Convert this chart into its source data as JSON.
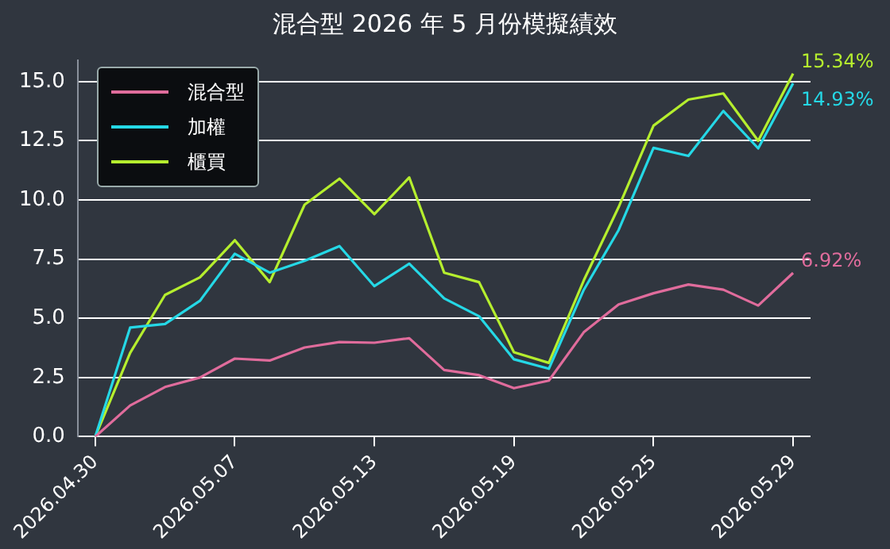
{
  "chart_data": {
    "type": "line",
    "title": "混合型 2026 年 5 月份模擬績效",
    "categories": [
      "2026.04.30",
      null,
      null,
      null,
      "2026.05.07",
      null,
      null,
      null,
      "2026.05.13",
      null,
      null,
      null,
      "2026.05.19",
      null,
      null,
      null,
      "2026.05.25",
      null,
      null,
      null,
      "2026.05.29"
    ],
    "series": [
      {
        "name": "混合型",
        "color": "#e06c9c",
        "values": [
          0,
          1.32,
          2.1,
          2.5,
          3.3,
          3.22,
          3.77,
          4.0,
          3.97,
          4.16,
          2.82,
          2.6,
          2.05,
          2.37,
          4.41,
          5.59,
          6.06,
          6.43,
          6.21,
          5.54,
          6.92
        ],
        "value_labels": [
          null,
          null,
          null,
          null,
          null,
          null,
          null,
          null,
          null,
          null,
          null,
          null,
          null,
          null,
          null,
          null,
          null,
          null,
          null,
          null,
          "6.92%"
        ]
      },
      {
        "name": "加權",
        "color": "#25d8e6",
        "values": [
          0,
          4.61,
          4.76,
          5.74,
          7.73,
          6.93,
          7.43,
          8.05,
          6.36,
          7.31,
          5.84,
          5.09,
          3.27,
          2.87,
          6.2,
          8.73,
          12.2,
          11.86,
          13.76,
          12.18,
          14.93
        ],
        "value_labels": [
          null,
          null,
          null,
          null,
          null,
          null,
          null,
          null,
          null,
          null,
          null,
          null,
          null,
          null,
          null,
          null,
          null,
          null,
          null,
          null,
          "14.93%"
        ]
      },
      {
        "name": "櫃買",
        "color": "#b5ee2e",
        "values": [
          0,
          3.54,
          5.99,
          6.73,
          8.3,
          6.53,
          9.8,
          10.9,
          9.4,
          10.95,
          6.93,
          6.53,
          3.57,
          3.12,
          6.6,
          9.7,
          13.14,
          14.24,
          14.5,
          12.5,
          15.34
        ],
        "value_labels": [
          null,
          null,
          null,
          null,
          null,
          null,
          null,
          null,
          null,
          null,
          null,
          null,
          null,
          null,
          null,
          null,
          null,
          null,
          null,
          null,
          "15.34%"
        ]
      }
    ],
    "ylim": [
      0,
      15.9
    ],
    "yticks": [
      {
        "value": 0,
        "label": "0.0"
      },
      {
        "value": 2.5,
        "label": "2.5"
      },
      {
        "value": 5,
        "label": "5.0"
      },
      {
        "value": 7.5,
        "label": "7.5"
      },
      {
        "value": 10,
        "label": "10.0"
      },
      {
        "value": 12.5,
        "label": "12.5"
      },
      {
        "value": 15,
        "label": "15.0"
      }
    ],
    "grid": "y",
    "legend": "top left",
    "marker": "none"
  }
}
